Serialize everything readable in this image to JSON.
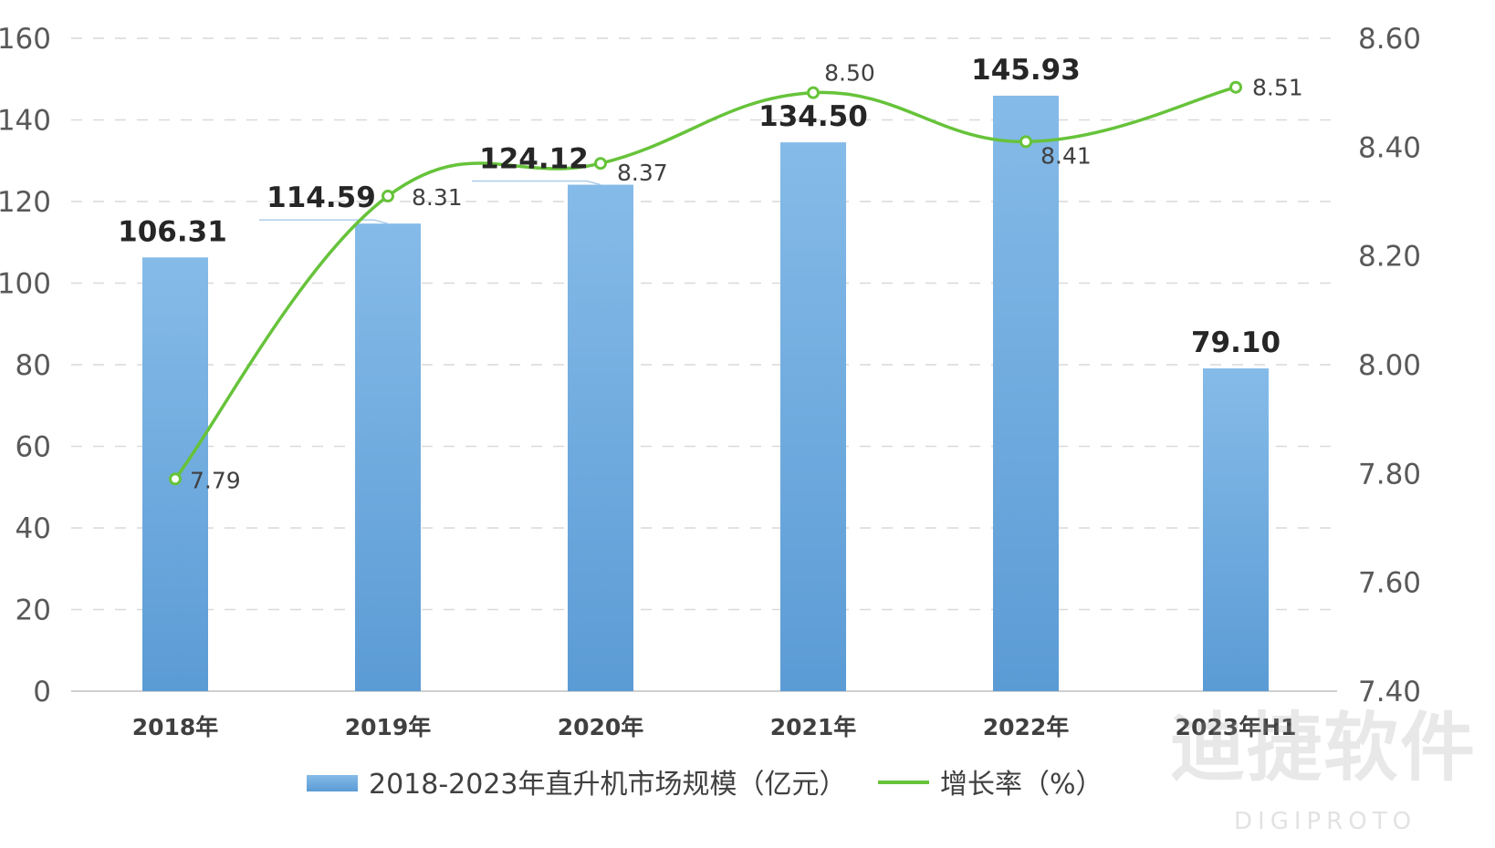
{
  "chart_data": {
    "type": "bar",
    "categories": [
      "2018年",
      "2019年",
      "2020年",
      "2021年",
      "2022年",
      "2023年H1"
    ],
    "series": [
      {
        "name": "2018-2023年直升机市场规模（亿元）",
        "type": "bar",
        "axis": "left",
        "values": [
          106.31,
          114.59,
          124.12,
          134.5,
          145.93,
          79.1
        ],
        "labels": [
          "106.31",
          "114.59",
          "124.12",
          "134.50",
          "145.93",
          "79.10"
        ],
        "color": "#6ea8dc"
      },
      {
        "name": "增长率（%）",
        "type": "line",
        "axis": "right",
        "values": [
          7.79,
          8.31,
          8.37,
          8.5,
          8.41,
          8.51
        ],
        "labels": [
          "7.79",
          "8.31",
          "8.37",
          "8.50",
          "8.41",
          "8.51"
        ],
        "color": "#66c33a"
      }
    ],
    "y_left": {
      "range": [
        0,
        160
      ],
      "ticks": [
        "0",
        "20",
        "40",
        "60",
        "80",
        "100",
        "120",
        "140",
        "160"
      ]
    },
    "y_right": {
      "range": [
        7.4,
        8.6
      ],
      "ticks": [
        "7.40",
        "7.60",
        "7.80",
        "8.00",
        "8.20",
        "8.40",
        "8.60"
      ]
    },
    "grid": true,
    "legend_position": "bottom",
    "title": "",
    "xlabel": "",
    "ylabel": ""
  },
  "watermark": {
    "text_cn": "迪捷软件",
    "text_en": "DIGIPROTO"
  }
}
